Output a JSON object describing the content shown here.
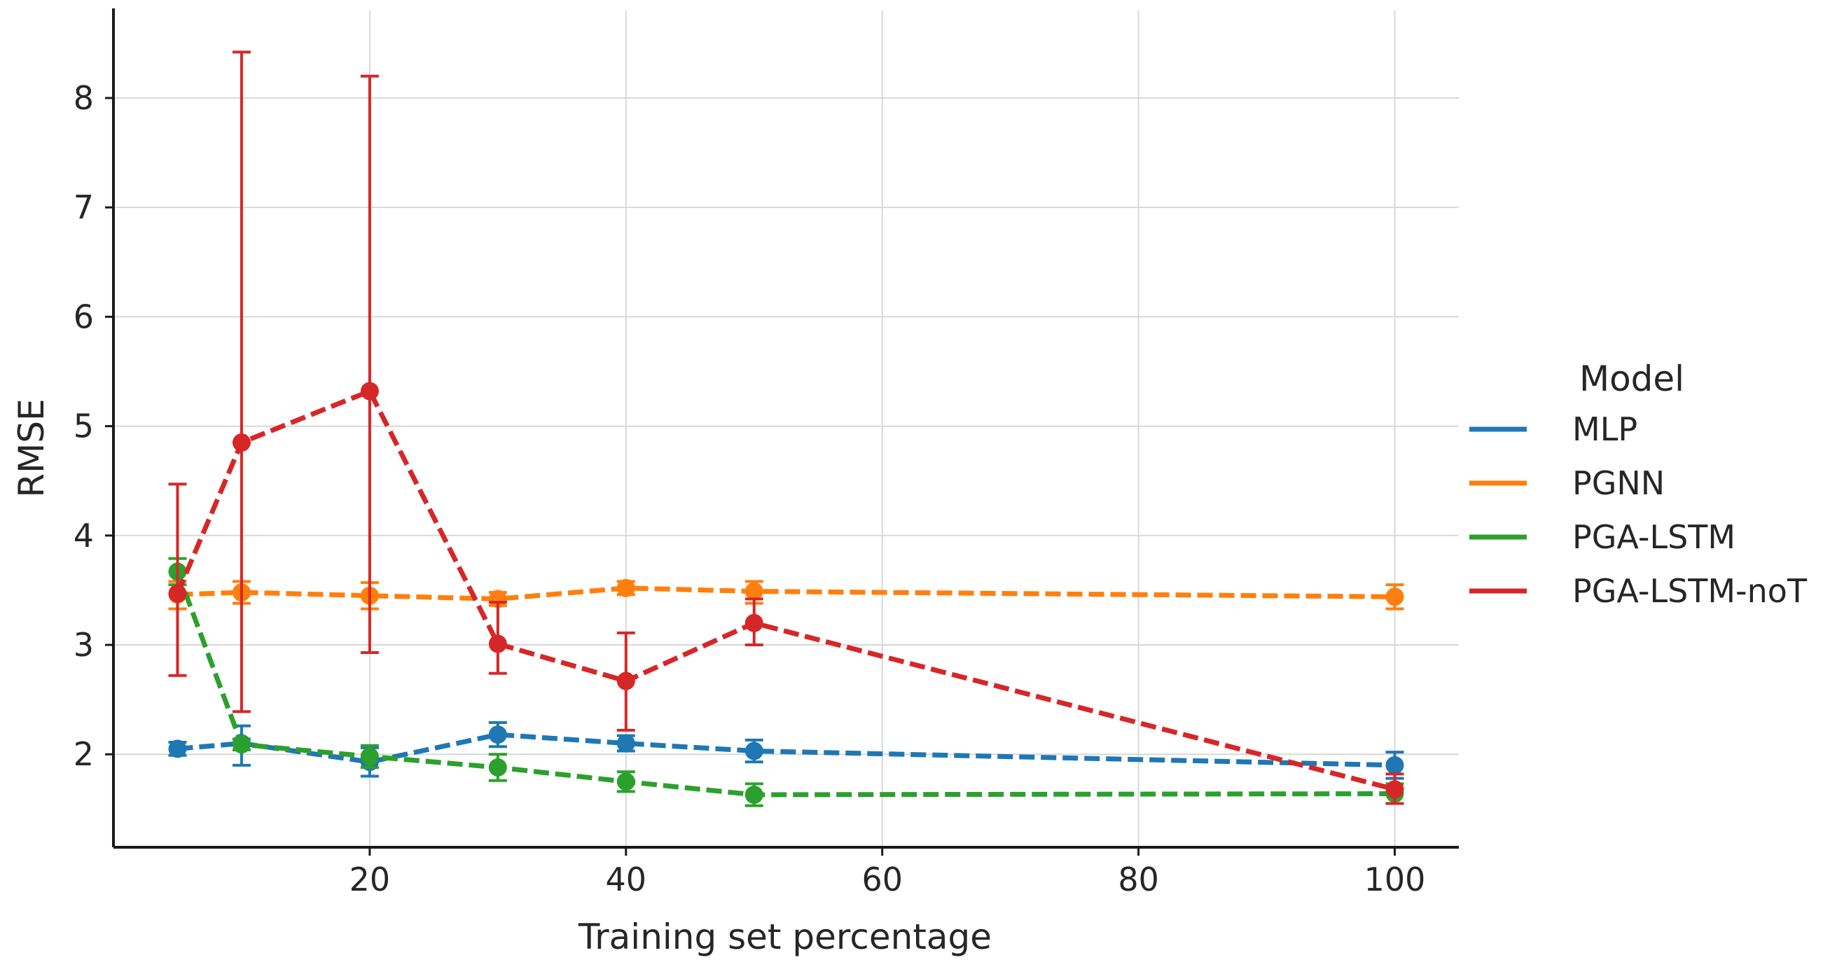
{
  "chart_data": {
    "type": "line",
    "title": "",
    "xlabel": "Training set percentage",
    "ylabel": "RMSE",
    "xlim": [
      0,
      105
    ],
    "ylim": [
      1.15,
      8.8
    ],
    "xticks": [
      20,
      40,
      60,
      80,
      100
    ],
    "yticks": [
      2,
      3,
      4,
      5,
      6,
      7,
      8
    ],
    "grid": true,
    "line_style": "dashed",
    "legend": {
      "title": "Model",
      "placement": "right"
    },
    "x": [
      5,
      10,
      20,
      30,
      40,
      50,
      100
    ],
    "series": [
      {
        "name": "MLP",
        "color": "#1f77b4",
        "values": [
          2.05,
          2.1,
          1.93,
          2.18,
          2.1,
          2.03,
          1.9
        ],
        "err_low": [
          1.99,
          1.9,
          1.8,
          2.07,
          2.03,
          1.93,
          1.78
        ],
        "err_high": [
          2.11,
          2.26,
          2.06,
          2.29,
          2.17,
          2.13,
          2.02
        ]
      },
      {
        "name": "PGNN",
        "color": "#ff7f0e",
        "values": [
          3.46,
          3.48,
          3.45,
          3.42,
          3.52,
          3.49,
          3.44
        ],
        "err_low": [
          3.33,
          3.38,
          3.33,
          3.36,
          3.46,
          3.38,
          3.33
        ],
        "err_high": [
          3.58,
          3.58,
          3.57,
          3.48,
          3.58,
          3.58,
          3.55
        ]
      },
      {
        "name": "PGA-LSTM",
        "color": "#2ca02c",
        "values": [
          3.67,
          2.09,
          1.98,
          1.88,
          1.75,
          1.63,
          1.64
        ],
        "err_low": [
          3.55,
          2.04,
          1.88,
          1.76,
          1.66,
          1.53,
          1.55
        ],
        "err_high": [
          3.79,
          2.14,
          2.08,
          2.0,
          1.84,
          1.73,
          1.73
        ]
      },
      {
        "name": "PGA-LSTM-noT",
        "color": "#d62728",
        "values": [
          3.47,
          4.85,
          5.32,
          3.01,
          2.67,
          3.2,
          1.68
        ],
        "err_low": [
          2.72,
          2.39,
          2.93,
          2.74,
          2.22,
          3.0,
          1.55
        ],
        "err_high": [
          4.47,
          8.42,
          8.2,
          3.39,
          3.11,
          3.42,
          1.82
        ]
      }
    ]
  }
}
